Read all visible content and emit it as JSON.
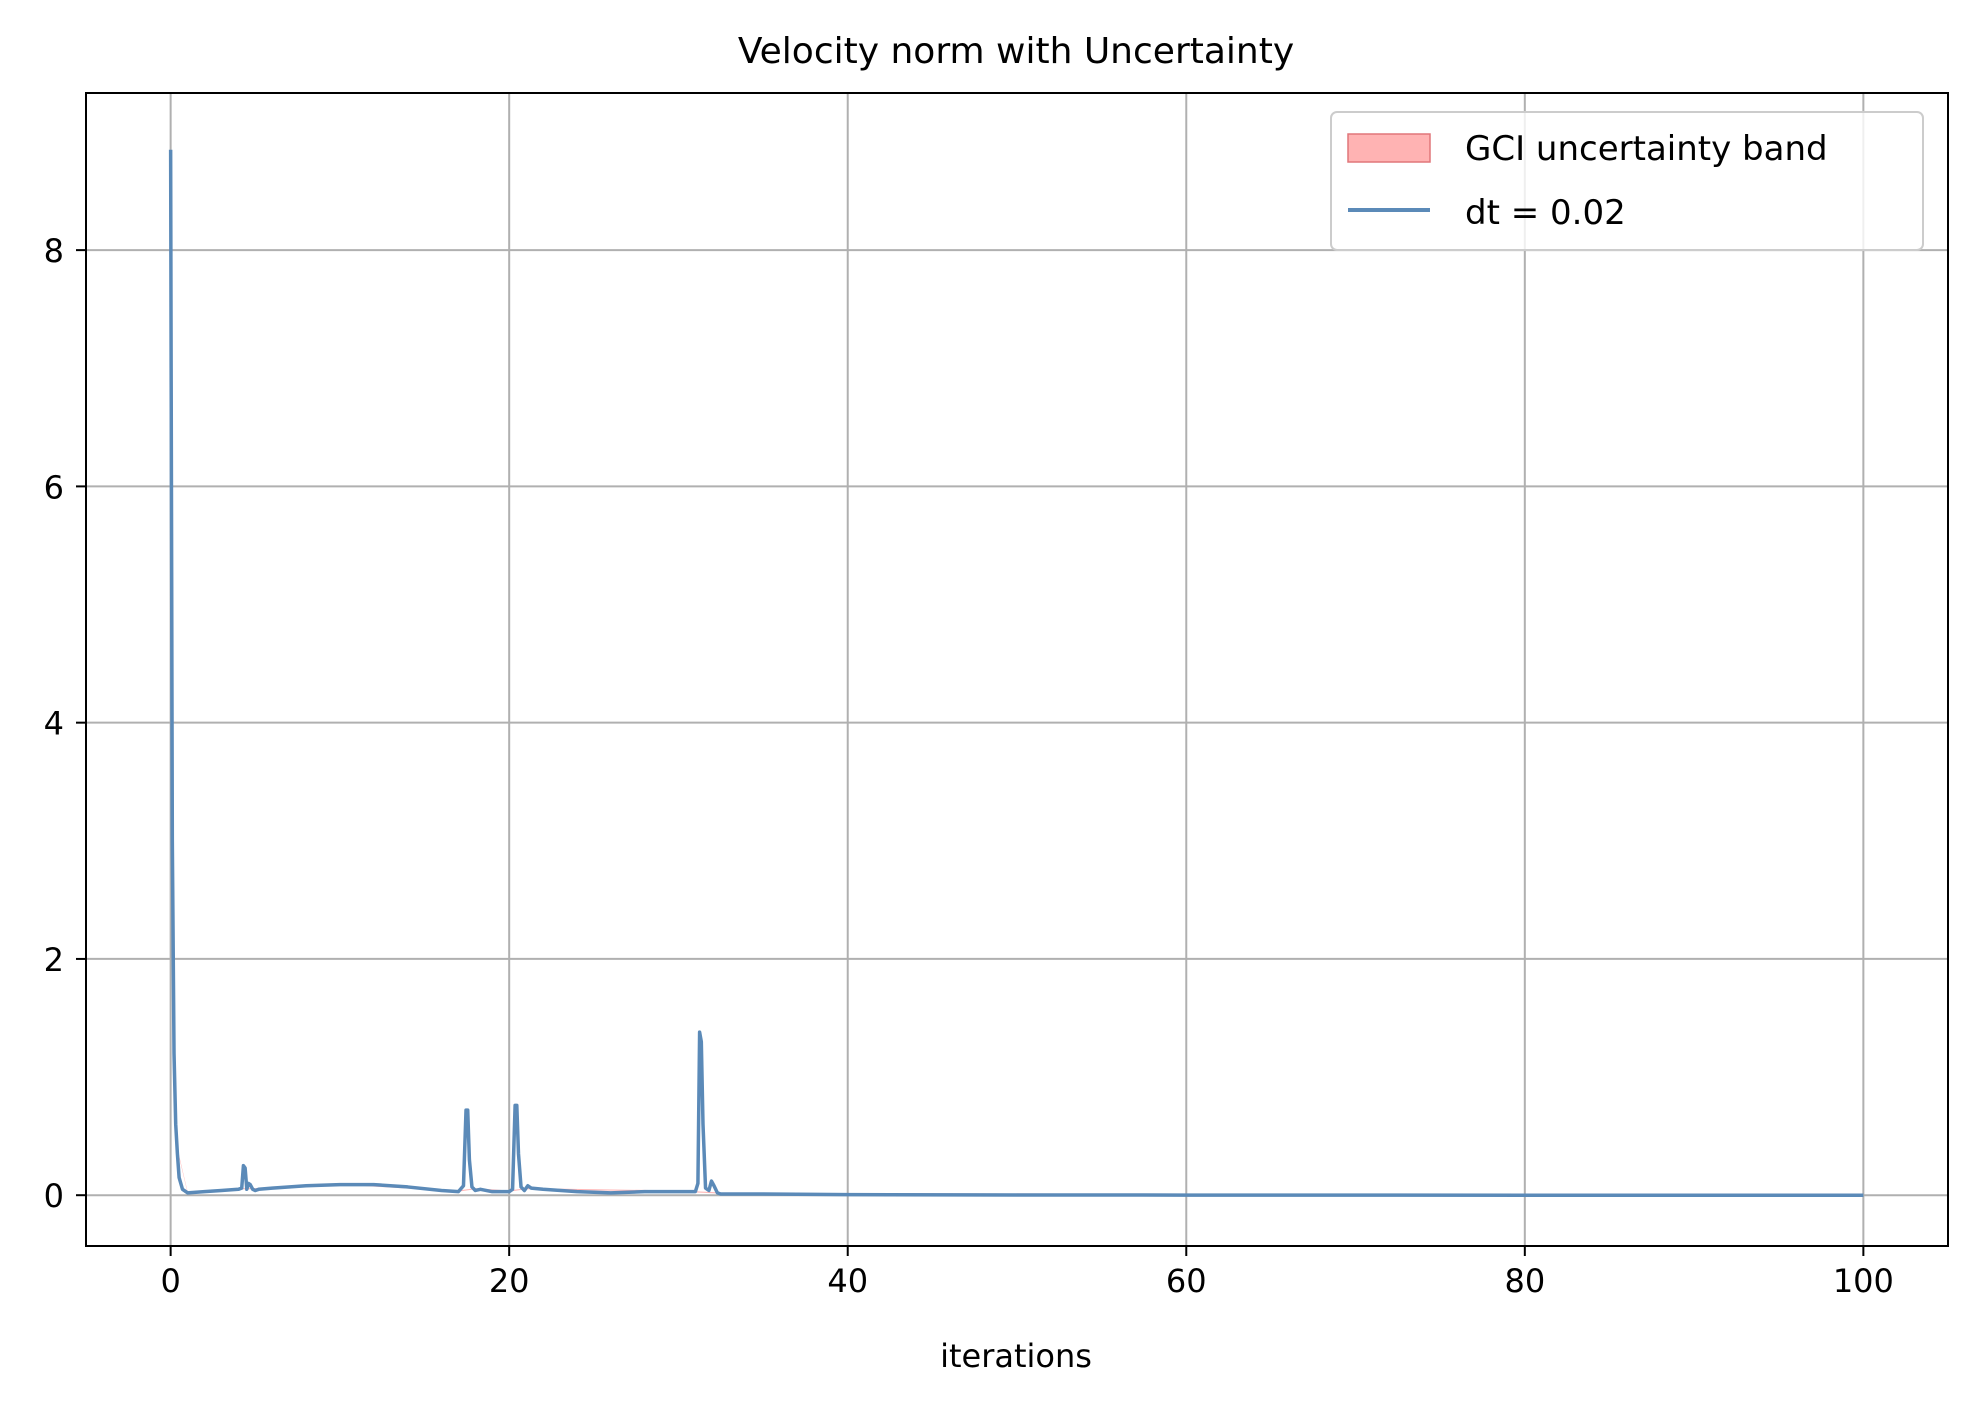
{
  "chart_data": {
    "type": "line",
    "title": "Velocity norm with Uncertainty",
    "xlabel": "iterations",
    "ylabel": "",
    "xlim": [
      -5,
      105
    ],
    "ylim": [
      -0.43,
      9.33
    ],
    "xticks": [
      0,
      20,
      40,
      60,
      80,
      100
    ],
    "yticks": [
      0,
      2,
      4,
      6,
      8
    ],
    "grid": true,
    "legend_position": "upper right",
    "legend": [
      {
        "label": "GCI uncertainty band",
        "kind": "band"
      },
      {
        "label": "dt = 0.02",
        "kind": "line"
      }
    ],
    "band": {
      "name": "GCI uncertainty band",
      "color": "#ff9999",
      "x": [
        0,
        0.4,
        1,
        4,
        5,
        10,
        17,
        18,
        20,
        21,
        30,
        33,
        100
      ],
      "lower": [
        8.85,
        0.38,
        0.02,
        0.05,
        0.05,
        0.09,
        0.03,
        0.05,
        0.03,
        0.05,
        0.03,
        0.01,
        0.0
      ],
      "upper": [
        8.86,
        0.4,
        0.03,
        0.06,
        0.06,
        0.1,
        0.04,
        0.06,
        0.04,
        0.06,
        0.04,
        0.02,
        0.0
      ]
    },
    "series": [
      {
        "name": "dt = 0.02",
        "color": "#5b8ab8",
        "x": [
          0,
          0.03,
          0.1,
          0.2,
          0.3,
          0.4,
          0.5,
          0.7,
          1.0,
          2.0,
          3.0,
          4.0,
          4.2,
          4.3,
          4.4,
          4.5,
          4.6,
          4.7,
          4.85,
          5.0,
          5.2,
          6,
          8,
          10,
          12,
          14,
          16,
          17.0,
          17.3,
          17.45,
          17.55,
          17.65,
          17.8,
          18.0,
          18.3,
          19,
          20.0,
          20.2,
          20.35,
          20.45,
          20.55,
          20.7,
          20.9,
          21.1,
          21.3,
          22,
          24,
          26,
          28,
          30,
          31.0,
          31.15,
          31.25,
          31.35,
          31.45,
          31.6,
          31.8,
          31.95,
          32.1,
          32.3,
          32.5,
          35,
          40,
          50,
          60,
          70,
          80,
          90,
          100
        ],
        "values": [
          8.85,
          7.0,
          3.0,
          1.2,
          0.6,
          0.35,
          0.15,
          0.05,
          0.02,
          0.03,
          0.04,
          0.05,
          0.06,
          0.25,
          0.23,
          0.05,
          0.1,
          0.09,
          0.05,
          0.04,
          0.05,
          0.06,
          0.08,
          0.09,
          0.09,
          0.07,
          0.04,
          0.03,
          0.08,
          0.72,
          0.72,
          0.3,
          0.07,
          0.04,
          0.05,
          0.03,
          0.03,
          0.05,
          0.76,
          0.76,
          0.35,
          0.07,
          0.04,
          0.08,
          0.06,
          0.05,
          0.03,
          0.02,
          0.03,
          0.03,
          0.03,
          0.1,
          1.38,
          1.3,
          0.6,
          0.06,
          0.04,
          0.12,
          0.08,
          0.02,
          0.01,
          0.01,
          0.005,
          0.002,
          0.001,
          0.001,
          0.0,
          0.0,
          0.0
        ]
      }
    ]
  }
}
